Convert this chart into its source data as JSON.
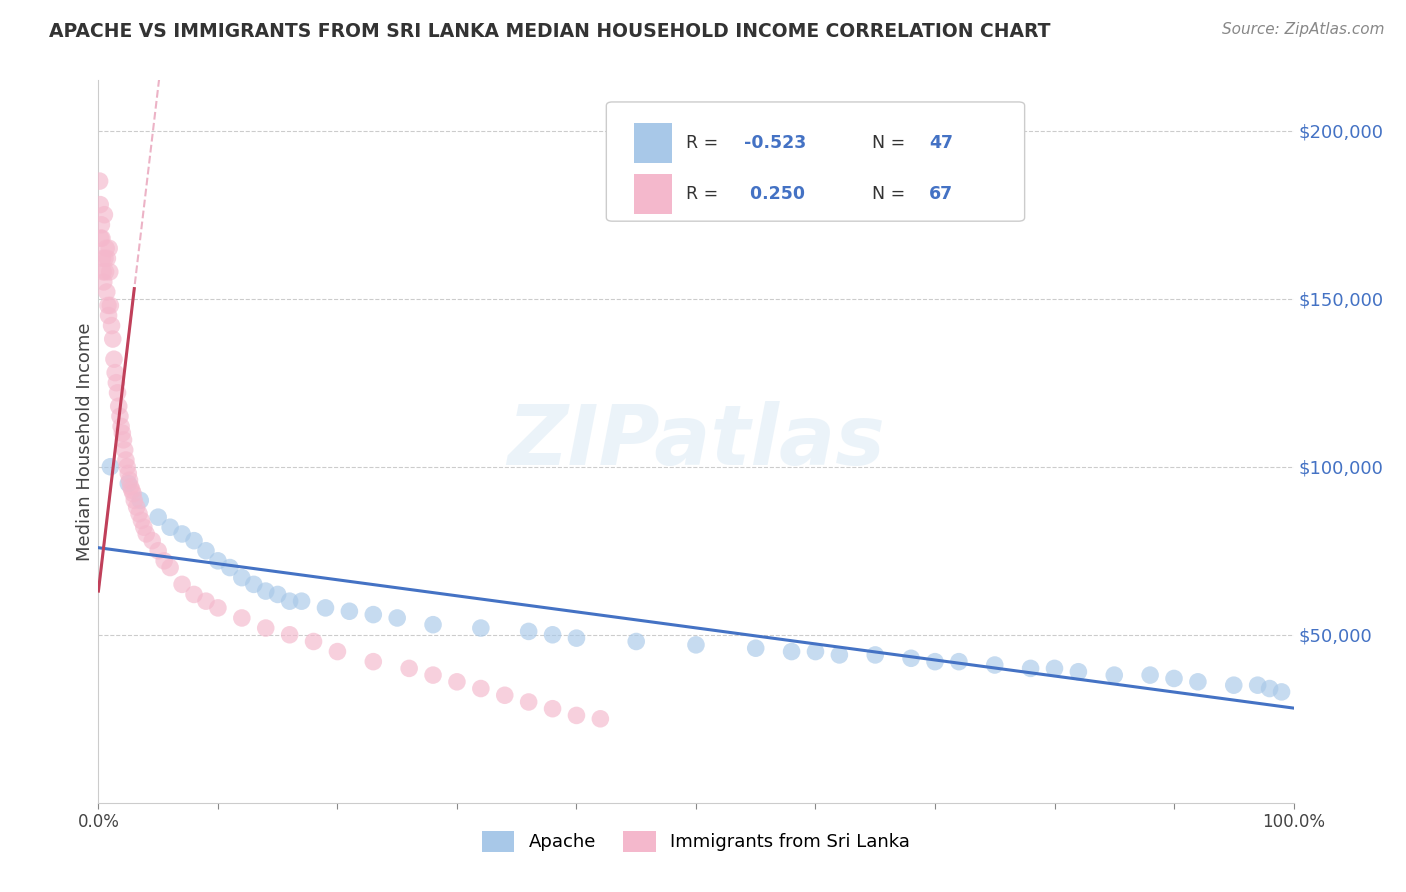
{
  "title": "APACHE VS IMMIGRANTS FROM SRI LANKA MEDIAN HOUSEHOLD INCOME CORRELATION CHART",
  "source": "Source: ZipAtlas.com",
  "ylabel": "Median Household Income",
  "xlim": [
    0,
    100
  ],
  "ylim": [
    0,
    215000
  ],
  "yticks": [
    50000,
    100000,
    150000,
    200000
  ],
  "ytick_labels": [
    "$50,000",
    "$100,000",
    "$150,000",
    "$200,000"
  ],
  "color_blue": "#a8c8e8",
  "color_blue_dark": "#5b9bd5",
  "color_blue_line": "#4472c4",
  "color_pink": "#f4b8cc",
  "color_pink_dark": "#e87fa4",
  "color_pink_line": "#c0405a",
  "color_pink_dashed": "#e8a0b8",
  "background": "#ffffff",
  "watermark": "ZIPatlas",
  "apache_x": [
    1.0,
    2.5,
    3.5,
    5.0,
    6.0,
    7.0,
    8.0,
    9.0,
    10.0,
    11.0,
    12.0,
    13.0,
    14.0,
    15.0,
    16.0,
    17.0,
    19.0,
    21.0,
    23.0,
    25.0,
    28.0,
    32.0,
    36.0,
    38.0,
    40.0,
    45.0,
    50.0,
    55.0,
    58.0,
    60.0,
    62.0,
    65.0,
    68.0,
    70.0,
    72.0,
    75.0,
    78.0,
    80.0,
    82.0,
    85.0,
    88.0,
    90.0,
    92.0,
    95.0,
    97.0,
    98.0,
    99.0
  ],
  "apache_y": [
    100000,
    95000,
    90000,
    85000,
    82000,
    80000,
    78000,
    75000,
    72000,
    70000,
    67000,
    65000,
    63000,
    62000,
    60000,
    60000,
    58000,
    57000,
    56000,
    55000,
    53000,
    52000,
    51000,
    50000,
    49000,
    48000,
    47000,
    46000,
    45000,
    45000,
    44000,
    44000,
    43000,
    42000,
    42000,
    41000,
    40000,
    40000,
    39000,
    38000,
    38000,
    37000,
    36000,
    35000,
    35000,
    34000,
    33000
  ],
  "srilanka_x": [
    0.1,
    0.15,
    0.2,
    0.25,
    0.3,
    0.35,
    0.4,
    0.45,
    0.5,
    0.55,
    0.6,
    0.65,
    0.7,
    0.75,
    0.8,
    0.85,
    0.9,
    0.95,
    1.0,
    1.1,
    1.2,
    1.3,
    1.4,
    1.5,
    1.6,
    1.7,
    1.8,
    1.9,
    2.0,
    2.1,
    2.2,
    2.3,
    2.4,
    2.5,
    2.6,
    2.7,
    2.8,
    2.9,
    3.0,
    3.2,
    3.4,
    3.6,
    3.8,
    4.0,
    4.5,
    5.0,
    5.5,
    6.0,
    7.0,
    8.0,
    9.0,
    10.0,
    12.0,
    14.0,
    16.0,
    18.0,
    20.0,
    23.0,
    26.0,
    28.0,
    30.0,
    32.0,
    34.0,
    36.0,
    38.0,
    40.0,
    42.0
  ],
  "srilanka_y": [
    185000,
    178000,
    168000,
    172000,
    168000,
    162000,
    158000,
    155000,
    175000,
    162000,
    158000,
    165000,
    152000,
    162000,
    148000,
    145000,
    165000,
    158000,
    148000,
    142000,
    138000,
    132000,
    128000,
    125000,
    122000,
    118000,
    115000,
    112000,
    110000,
    108000,
    105000,
    102000,
    100000,
    98000,
    96000,
    94000,
    93000,
    92000,
    90000,
    88000,
    86000,
    84000,
    82000,
    80000,
    78000,
    75000,
    72000,
    70000,
    65000,
    62000,
    60000,
    58000,
    55000,
    52000,
    50000,
    48000,
    45000,
    42000,
    40000,
    38000,
    36000,
    34000,
    32000,
    30000,
    28000,
    26000,
    25000
  ]
}
